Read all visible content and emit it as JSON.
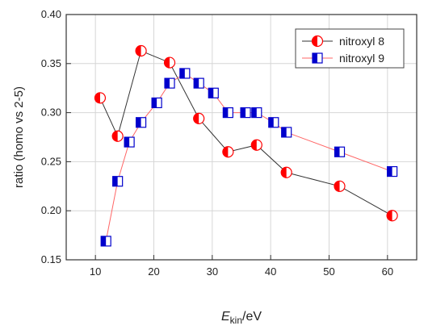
{
  "chart_data": {
    "type": "line",
    "xlabel_main": "E",
    "xlabel_sub": "kin",
    "xlabel_unit": "/eV",
    "ylabel": "ratio (homo vs 2-5)",
    "xlim": [
      5,
      65
    ],
    "ylim": [
      0.15,
      0.4
    ],
    "xticks": [
      "10",
      "20",
      "30",
      "40",
      "50",
      "60"
    ],
    "yticks": [
      "0.15",
      "0.20",
      "0.25",
      "0.30",
      "0.35",
      "0.40"
    ],
    "grid": true,
    "legend_position": "top-right",
    "series": [
      {
        "name": "nitroxyl 8",
        "color": "#ff0000",
        "line_color": "#333333",
        "marker": "half-filled-circle",
        "x": [
          10.8,
          13.8,
          17.8,
          22.7,
          27.7,
          32.7,
          37.6,
          42.7,
          51.8,
          60.8
        ],
        "y": [
          0.315,
          0.276,
          0.363,
          0.351,
          0.294,
          0.26,
          0.267,
          0.239,
          0.225,
          0.195
        ]
      },
      {
        "name": "nitroxyl 9",
        "color": "#0000cc",
        "line_color": "#ff6666",
        "marker": "half-filled-square",
        "x": [
          11.8,
          13.8,
          15.8,
          17.8,
          20.5,
          22.7,
          25.3,
          27.7,
          30.2,
          32.7,
          35.7,
          37.6,
          40.5,
          42.7,
          51.8,
          60.8
        ],
        "y": [
          0.169,
          0.23,
          0.27,
          0.29,
          0.31,
          0.33,
          0.34,
          0.33,
          0.32,
          0.3,
          0.3,
          0.3,
          0.29,
          0.28,
          0.26,
          0.24
        ]
      }
    ]
  }
}
